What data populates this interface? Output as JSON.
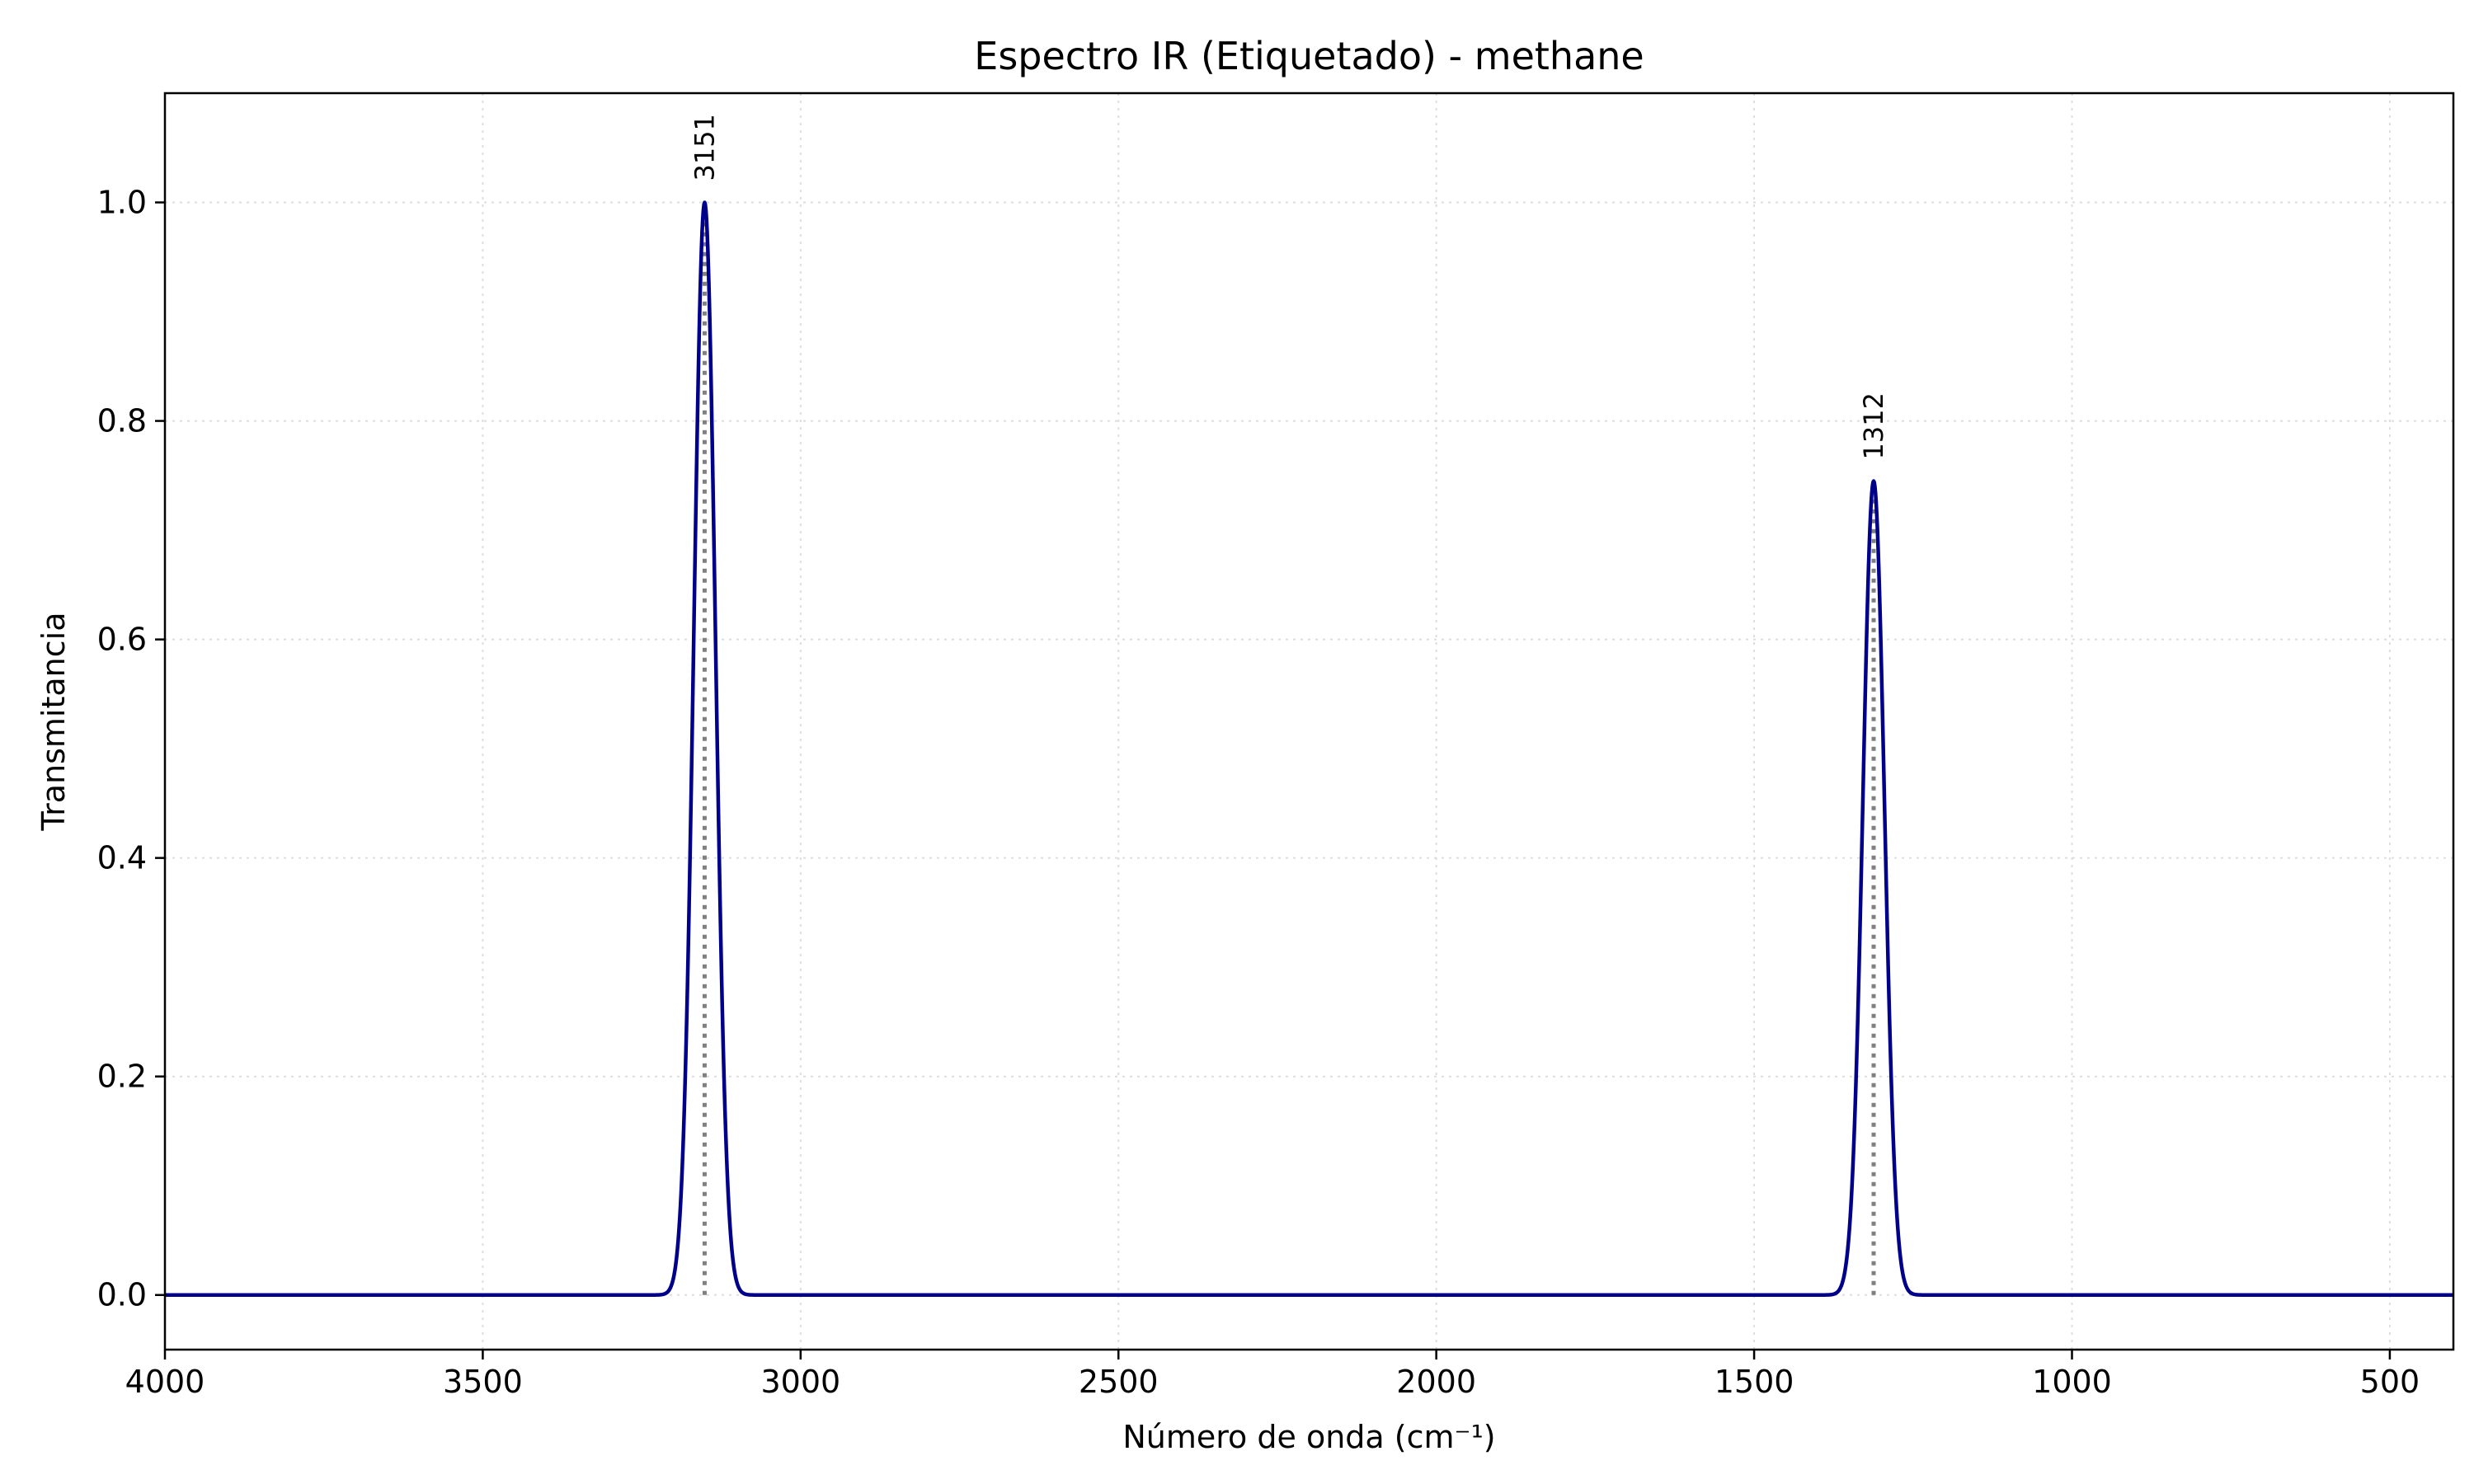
{
  "chart_data": {
    "type": "line",
    "title": "Espectro IR (Etiquetado) - methane",
    "xlabel": "Número de onda (cm⁻¹)",
    "ylabel": "Transmitancia",
    "xlim": [
      4000,
      400
    ],
    "ylim": [
      -0.05,
      1.1
    ],
    "x_inverted": true,
    "xticks": [
      4000,
      3500,
      3000,
      2500,
      2000,
      1500,
      1000,
      500
    ],
    "xtick_labels": [
      "4000",
      "3500",
      "3000",
      "2500",
      "2000",
      "1500",
      "1000",
      "500"
    ],
    "yticks": [
      0.0,
      0.2,
      0.4,
      0.6,
      0.8,
      1.0
    ],
    "ytick_labels": [
      "0.0",
      "0.2",
      "0.4",
      "0.6",
      "0.8",
      "1.0"
    ],
    "grid": true,
    "series": [
      {
        "peaks": [
          {
            "x": 3151,
            "y": 1.0,
            "label": "3151"
          },
          {
            "x": 1312,
            "y": 0.745,
            "label": "1312"
          }
        ],
        "fwhm": 40
      }
    ],
    "colors": {
      "line": "#00008b",
      "marker_line": "#808080",
      "grid": "#dddddd",
      "axes": "#000000"
    }
  }
}
